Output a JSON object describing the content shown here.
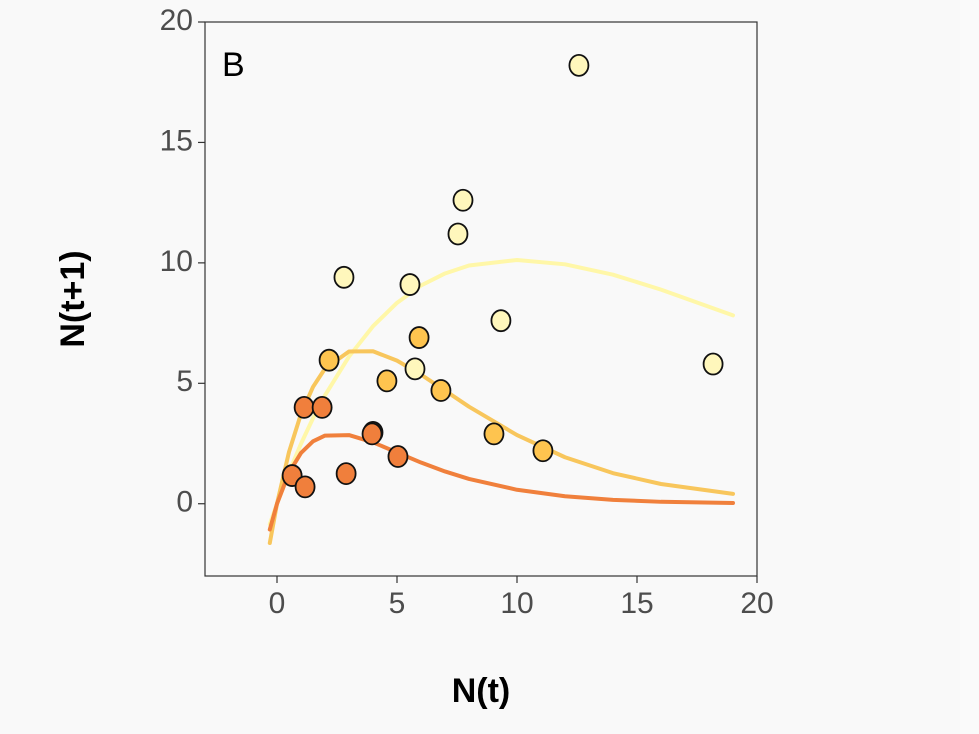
{
  "chart_data": {
    "type": "scatter",
    "annotation": "B",
    "xlabel": "N(t)",
    "ylabel": "N(t+1)",
    "xlim": [
      -3,
      20
    ],
    "ylim": [
      -3,
      20
    ],
    "xticks": [
      0,
      5,
      10,
      15,
      20
    ],
    "yticks": [
      0,
      5,
      10,
      15,
      20
    ],
    "grid": false,
    "series": [
      {
        "color": "#fff7bc",
        "x": [
          12.58,
          7.75,
          7.54,
          2.79,
          5.54,
          9.33,
          5.75,
          18.17
        ],
        "values": [
          18.2,
          12.6,
          11.2,
          9.4,
          9.1,
          7.6,
          5.6,
          5.8
        ]
      },
      {
        "color": "#fec44f",
        "x": [
          2.17,
          5.92,
          4.58,
          6.83,
          9.04,
          11.08,
          4.0
        ],
        "values": [
          5.96,
          6.9,
          5.1,
          4.7,
          2.9,
          2.2,
          2.96
        ]
      },
      {
        "color": "#f07f3c",
        "x": [
          1.13,
          1.88,
          3.96,
          0.63,
          1.17,
          2.88,
          5.04
        ],
        "values": [
          4.0,
          4.0,
          2.9,
          1.17,
          0.7,
          1.25,
          1.96
        ]
      }
    ],
    "curves": [
      {
        "color": "#fff7a8",
        "x": [
          -0.3,
          0,
          0.5,
          1,
          1.5,
          2,
          3,
          4,
          5,
          6,
          7,
          8,
          10,
          12,
          14,
          16,
          19
        ],
        "values": [
          -0.85,
          0,
          1.31,
          2.49,
          3.55,
          4.5,
          6.11,
          7.37,
          8.34,
          9.06,
          9.56,
          9.89,
          10.12,
          9.94,
          9.51,
          8.89,
          7.82
        ]
      },
      {
        "color": "#f8c65c",
        "x": [
          -0.3,
          0,
          0.5,
          1,
          1.5,
          2,
          3,
          4,
          5,
          6,
          7,
          8,
          10,
          12,
          14,
          16,
          19
        ],
        "values": [
          -1.63,
          0,
          2.15,
          3.73,
          4.85,
          5.61,
          6.32,
          6.33,
          5.94,
          5.36,
          4.7,
          4.03,
          2.85,
          1.93,
          1.27,
          0.82,
          0.41
        ]
      },
      {
        "color": "#f0803c",
        "x": [
          -0.3,
          0,
          0.5,
          1,
          1.5,
          2,
          3,
          4,
          5,
          6,
          7,
          8,
          10,
          12,
          14,
          16,
          19
        ],
        "values": [
          -1.07,
          0,
          1.29,
          2.11,
          2.59,
          2.83,
          2.85,
          2.55,
          2.13,
          1.71,
          1.34,
          1.03,
          0.58,
          0.31,
          0.16,
          0.08,
          0.03
        ]
      }
    ]
  }
}
